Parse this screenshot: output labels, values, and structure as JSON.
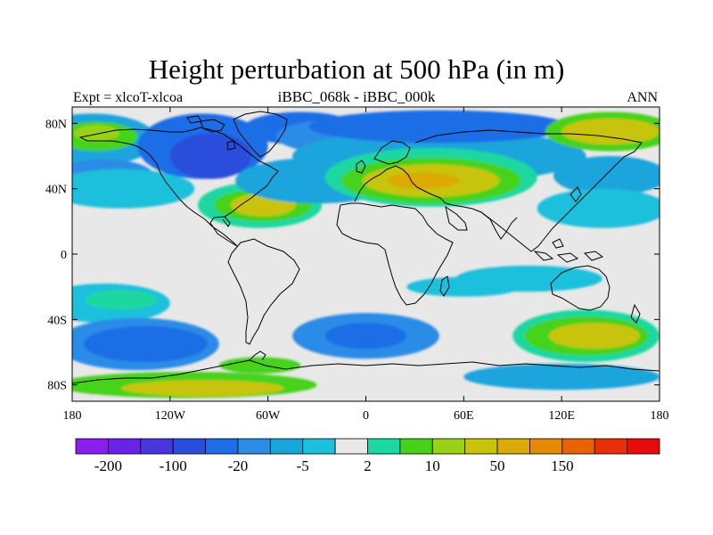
{
  "figure": {
    "title": "Height perturbation at 500 hPa (in m)",
    "left_string": "Expt = xlcoT-xlcoa",
    "center_string": "iBBC_068k - iBBC_000k",
    "right_string": "ANN"
  },
  "axes": {
    "x_ticks": [
      "180",
      "120W",
      "60W",
      "0",
      "60E",
      "120E",
      "180"
    ],
    "y_ticks": [
      "80N",
      "40N",
      "0",
      "40S",
      "80S"
    ],
    "lon_range": [
      -180,
      180
    ],
    "lat_range": [
      -90,
      90
    ]
  },
  "colorbar": {
    "colors": [
      "#8c1cf0",
      "#6a22e6",
      "#4a36de",
      "#2a4edc",
      "#1c6ee6",
      "#2c8ce6",
      "#1aa4dc",
      "#1cc0dc",
      "#e8e8e8",
      "#1cd8a0",
      "#46d21c",
      "#98d216",
      "#c8c40a",
      "#dcaa06",
      "#e68a06",
      "#ea6206",
      "#e83008",
      "#e60c0c"
    ],
    "labels": [
      "-200",
      "-100",
      "-20",
      "-5",
      "2",
      "10",
      "50",
      "150"
    ]
  },
  "map_data": {
    "background_color": "#e8e8e8",
    "features": [
      {
        "lon": -168,
        "lat": 70,
        "rlon": 40,
        "rlat": 16,
        "c": "#1aa4dc"
      },
      {
        "lon": -165,
        "lat": 72,
        "rlon": 25,
        "rlat": 9,
        "c": "#46d21c"
      },
      {
        "lon": -165,
        "lat": 74,
        "rlon": 14,
        "rlat": 5,
        "c": "#98d216"
      },
      {
        "lon": -160,
        "lat": 48,
        "rlon": 30,
        "rlat": 10,
        "c": "#2c8ce6"
      },
      {
        "lon": -150,
        "lat": 40,
        "rlon": 45,
        "rlat": 12,
        "c": "#1cc0dc"
      },
      {
        "lon": -100,
        "lat": 66,
        "rlon": 40,
        "rlat": 20,
        "c": "#1c6ee6"
      },
      {
        "lon": -95,
        "lat": 60,
        "rlon": 25,
        "rlat": 14,
        "c": "#2a4edc"
      },
      {
        "lon": -40,
        "lat": 77,
        "rlon": 35,
        "rlat": 10,
        "c": "#1c6ee6"
      },
      {
        "lon": -20,
        "lat": 72,
        "rlon": 35,
        "rlat": 10,
        "c": "#2c8ce6"
      },
      {
        "lon": -65,
        "lat": 30,
        "rlon": 38,
        "rlat": 14,
        "c": "#1cd8a0"
      },
      {
        "lon": -63,
        "lat": 30,
        "rlon": 30,
        "rlat": 10,
        "c": "#46d21c"
      },
      {
        "lon": -63,
        "lat": 30,
        "rlon": 20,
        "rlat": 7,
        "c": "#c8c40a"
      },
      {
        "lon": -30,
        "lat": 45,
        "rlon": 50,
        "rlat": 14,
        "c": "#1aa4dc"
      },
      {
        "lon": 45,
        "lat": 60,
        "rlon": 90,
        "rlat": 16,
        "c": "#1aa4dc"
      },
      {
        "lon": 45,
        "lat": 78,
        "rlon": 80,
        "rlat": 10,
        "c": "#1c6ee6"
      },
      {
        "lon": 40,
        "lat": 47,
        "rlon": 65,
        "rlat": 18,
        "c": "#1cd8a0"
      },
      {
        "lon": 40,
        "lat": 45,
        "rlon": 55,
        "rlat": 14,
        "c": "#46d21c"
      },
      {
        "lon": 40,
        "lat": 45,
        "rlon": 42,
        "rlat": 10,
        "c": "#c8c40a"
      },
      {
        "lon": 35,
        "lat": 45,
        "rlon": 22,
        "rlat": 5,
        "c": "#dcaa06"
      },
      {
        "lon": 150,
        "lat": 75,
        "rlon": 40,
        "rlat": 12,
        "c": "#46d21c"
      },
      {
        "lon": 150,
        "lat": 75,
        "rlon": 30,
        "rlat": 8,
        "c": "#c8c40a"
      },
      {
        "lon": 150,
        "lat": 48,
        "rlon": 35,
        "rlat": 12,
        "c": "#1aa4dc"
      },
      {
        "lon": 145,
        "lat": 28,
        "rlon": 40,
        "rlat": 12,
        "c": "#1cc0dc"
      },
      {
        "lon": -160,
        "lat": -30,
        "rlon": 40,
        "rlat": 12,
        "c": "#1cc0dc"
      },
      {
        "lon": -150,
        "lat": -28,
        "rlon": 22,
        "rlat": 6,
        "c": "#1cd8a0"
      },
      {
        "lon": -140,
        "lat": -55,
        "rlon": 50,
        "rlat": 16,
        "c": "#2c8ce6"
      },
      {
        "lon": -135,
        "lat": -55,
        "rlon": 38,
        "rlat": 11,
        "c": "#1c6ee6"
      },
      {
        "lon": 0,
        "lat": -50,
        "rlon": 45,
        "rlat": 14,
        "c": "#2c8ce6"
      },
      {
        "lon": 0,
        "lat": -50,
        "rlon": 25,
        "rlat": 8,
        "c": "#1c6ee6"
      },
      {
        "lon": 60,
        "lat": -20,
        "rlon": 35,
        "rlat": 6,
        "c": "#1cc0dc"
      },
      {
        "lon": 135,
        "lat": -50,
        "rlon": 45,
        "rlat": 16,
        "c": "#1cd8a0"
      },
      {
        "lon": 135,
        "lat": -50,
        "rlon": 38,
        "rlat": 12,
        "c": "#46d21c"
      },
      {
        "lon": 140,
        "lat": -50,
        "rlon": 28,
        "rlat": 8,
        "c": "#c8c40a"
      },
      {
        "lon": 100,
        "lat": -15,
        "rlon": 45,
        "rlat": 8,
        "c": "#1cc0dc"
      },
      {
        "lon": -110,
        "lat": -80,
        "rlon": 80,
        "rlat": 8,
        "c": "#46d21c"
      },
      {
        "lon": -100,
        "lat": -82,
        "rlon": 50,
        "rlat": 5,
        "c": "#c8c40a"
      },
      {
        "lon": -65,
        "lat": -68,
        "rlon": 25,
        "rlat": 5,
        "c": "#46d21c"
      },
      {
        "lon": 120,
        "lat": -75,
        "rlon": 60,
        "rlat": 8,
        "c": "#1aa4dc"
      }
    ]
  }
}
